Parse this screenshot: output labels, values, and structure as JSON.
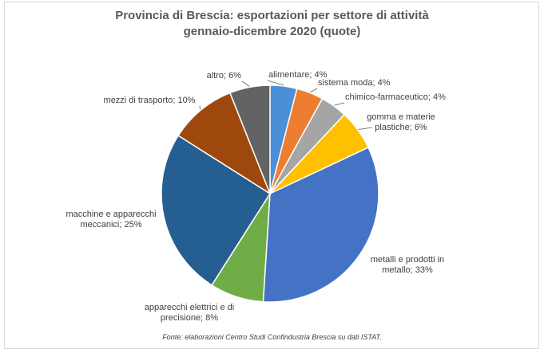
{
  "chart_data": {
    "type": "pie",
    "title": "Provincia di Brescia: esportazioni per settore di attività",
    "subtitle": "gennaio-dicembre 2020 (quote)",
    "categories": [
      "alimentare",
      "sistema moda",
      "chimico-farmaceutico",
      "gomma e materie plastiche",
      "metalli e prodotti in metallo",
      "apparecchi elettrici e di precisione",
      "macchine e apparecchi meccanici",
      "mezzi di trasporto",
      "altro"
    ],
    "values": [
      4,
      4,
      4,
      6,
      33,
      8,
      25,
      10,
      6
    ],
    "colors": [
      "#4a90d9",
      "#ed7d31",
      "#a5a5a5",
      "#ffc000",
      "#4472c4",
      "#70ad47",
      "#255e91",
      "#9e480e",
      "#636363"
    ],
    "data_labels": [
      [
        "alimentare; 4%"
      ],
      [
        "sistema moda; 4%"
      ],
      [
        "chimico-farmaceutico; 4%"
      ],
      [
        "gomma e materie",
        "plastiche; 6%"
      ],
      [
        "metalli e prodotti in",
        "metallo; 33%"
      ],
      [
        "apparecchi elettrici e di",
        "precisione; 8%"
      ],
      [
        "macchine e apparecchi",
        "meccanici; 25%"
      ],
      [
        "mezzi di trasporto; 10%"
      ],
      [
        "altro; 6%"
      ]
    ],
    "legend": "none"
  },
  "source_note": "Fonte: elaborazioni Centro Studi Confindustria Brescia su dati ISTAT."
}
